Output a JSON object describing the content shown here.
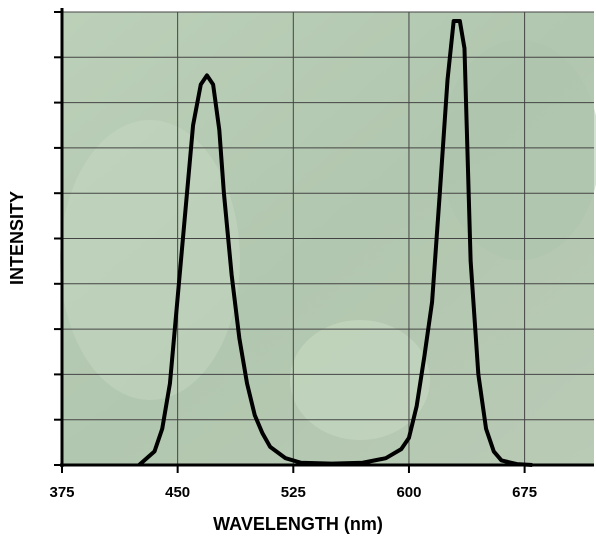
{
  "chart_data": {
    "type": "line",
    "xlabel": "WAVELENGTH (nm)",
    "ylabel": "INTENSITY",
    "x": [
      425,
      435,
      440,
      445,
      450,
      455,
      460,
      465,
      469,
      473,
      477,
      480,
      485,
      490,
      495,
      500,
      505,
      510,
      520,
      530,
      550,
      570,
      585,
      595,
      600,
      605,
      610,
      615,
      620,
      625,
      629,
      633,
      636,
      640,
      645,
      650,
      655,
      660,
      670,
      680
    ],
    "series": [
      {
        "color": "#000000",
        "values": [
          0,
          0.3,
          0.8,
          1.8,
          3.7,
          5.6,
          7.5,
          8.4,
          8.6,
          8.4,
          7.4,
          6.0,
          4.2,
          2.8,
          1.8,
          1.1,
          0.7,
          0.4,
          0.15,
          0.05,
          0.03,
          0.05,
          0.15,
          0.35,
          0.6,
          1.3,
          2.4,
          3.6,
          6.0,
          8.5,
          9.8,
          9.8,
          9.2,
          4.5,
          2.0,
          0.8,
          0.3,
          0.1,
          0.02,
          0
        ]
      }
    ],
    "xlim": [
      375,
      720
    ],
    "xticks": [
      375,
      450,
      525,
      600,
      675
    ],
    "ylim": [
      0,
      10
    ],
    "yticks": [
      0,
      1,
      2,
      3,
      4,
      5,
      6,
      7,
      8,
      9,
      10
    ],
    "grid": true
  }
}
